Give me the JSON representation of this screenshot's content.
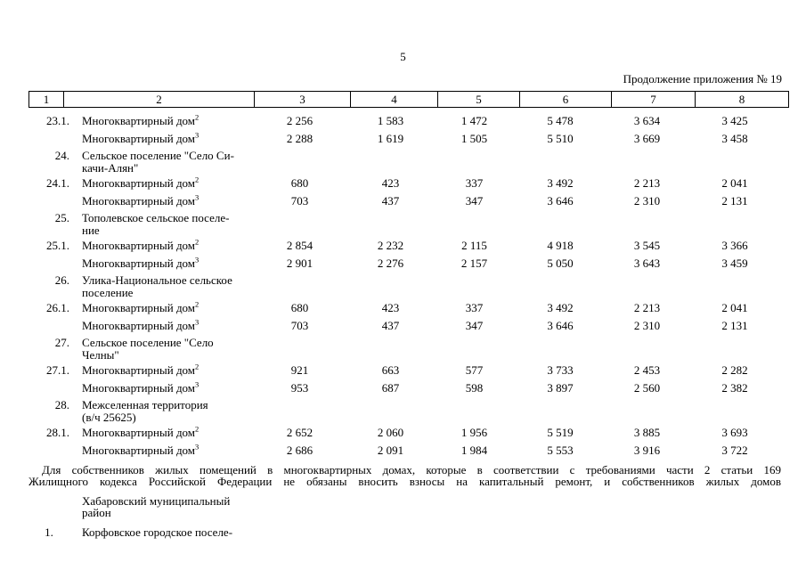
{
  "colors": {
    "text": "#000000",
    "background": "#ffffff",
    "border": "#000000"
  },
  "page": {
    "number": "5",
    "continuation": "Продолжение приложения № 19"
  },
  "table": {
    "header_cols": [
      "1",
      "2",
      "3",
      "4",
      "5",
      "6",
      "7",
      "8"
    ],
    "rows": [
      {
        "type": "data",
        "num": "23.1.",
        "name": "Многоквартирный дом",
        "sup": "2",
        "values": [
          "2 256",
          "1 583",
          "1 472",
          "5 478",
          "3 634",
          "3 425"
        ]
      },
      {
        "type": "data",
        "num": "",
        "name": "Многоквартирный дом",
        "sup": "3",
        "values": [
          "2 288",
          "1 619",
          "1 505",
          "5 510",
          "3 669",
          "3 458"
        ]
      },
      {
        "type": "section",
        "num": "24.",
        "lines": [
          "Сельское поселение \"Село Си-",
          "качи-Алян\""
        ]
      },
      {
        "type": "data",
        "num": "24.1.",
        "name": "Многоквартирный дом",
        "sup": "2",
        "values": [
          "680",
          "423",
          "337",
          "3 492",
          "2 213",
          "2 041"
        ]
      },
      {
        "type": "data",
        "num": "",
        "name": "Многоквартирный дом",
        "sup": "3",
        "values": [
          "703",
          "437",
          "347",
          "3 646",
          "2 310",
          "2 131"
        ]
      },
      {
        "type": "section",
        "num": "25.",
        "lines": [
          "Тополевское сельское поселе-",
          "ние"
        ]
      },
      {
        "type": "data",
        "num": "25.1.",
        "name": "Многоквартирный дом",
        "sup": "2",
        "values": [
          "2 854",
          "2 232",
          "2 115",
          "4 918",
          "3 545",
          "3 366"
        ]
      },
      {
        "type": "data",
        "num": "",
        "name": "Многоквартирный дом",
        "sup": "3",
        "values": [
          "2 901",
          "2 276",
          "2 157",
          "5 050",
          "3 643",
          "3 459"
        ]
      },
      {
        "type": "section",
        "num": "26.",
        "lines": [
          "Улика-Национальное сельское",
          "поселение"
        ]
      },
      {
        "type": "data",
        "num": "26.1.",
        "name": "Многоквартирный дом",
        "sup": "2",
        "values": [
          "680",
          "423",
          "337",
          "3 492",
          "2 213",
          "2 041"
        ]
      },
      {
        "type": "data",
        "num": "",
        "name": "Многоквартирный дом",
        "sup": "3",
        "values": [
          "703",
          "437",
          "347",
          "3 646",
          "2 310",
          "2 131"
        ]
      },
      {
        "type": "section",
        "num": "27.",
        "lines": [
          "Сельское поселение \"Село",
          "Челны\""
        ]
      },
      {
        "type": "data",
        "num": "27.1.",
        "name": "Многоквартирный дом",
        "sup": "2",
        "values": [
          "921",
          "663",
          "577",
          "3 733",
          "2 453",
          "2 282"
        ]
      },
      {
        "type": "data",
        "num": "",
        "name": "Многоквартирный дом",
        "sup": "3",
        "values": [
          "953",
          "687",
          "598",
          "3 897",
          "2 560",
          "2 382"
        ]
      },
      {
        "type": "section",
        "num": "28.",
        "lines": [
          "Межселенная территория",
          "(в/ч 25625)"
        ]
      },
      {
        "type": "data",
        "num": "28.1.",
        "name": "Многоквартирный дом",
        "sup": "2",
        "values": [
          "2 652",
          "2 060",
          "1 956",
          "5 519",
          "3 885",
          "3 693"
        ]
      },
      {
        "type": "data",
        "num": "",
        "name": "Многоквартирный дом",
        "sup": "3",
        "values": [
          "2 686",
          "2 091",
          "1 984",
          "5 553",
          "3 916",
          "3 722"
        ]
      }
    ]
  },
  "note": {
    "lines": [
      "Для собственников жилых помещений в многоквартирных домах, которые в соответствии с требованиями части 2 статьи 169",
      "Жилищного кодекса Российской Федерации не обязаны вносить взносы на капитальный ремонт, и собственников жилых домов"
    ]
  },
  "footer_rows": [
    {
      "type": "section",
      "num": "",
      "lines": [
        "Хабаровский муниципальный",
        "район"
      ]
    },
    {
      "type": "section",
      "num": "1.",
      "lines": [
        "Корфовское городское поселе-"
      ]
    }
  ]
}
